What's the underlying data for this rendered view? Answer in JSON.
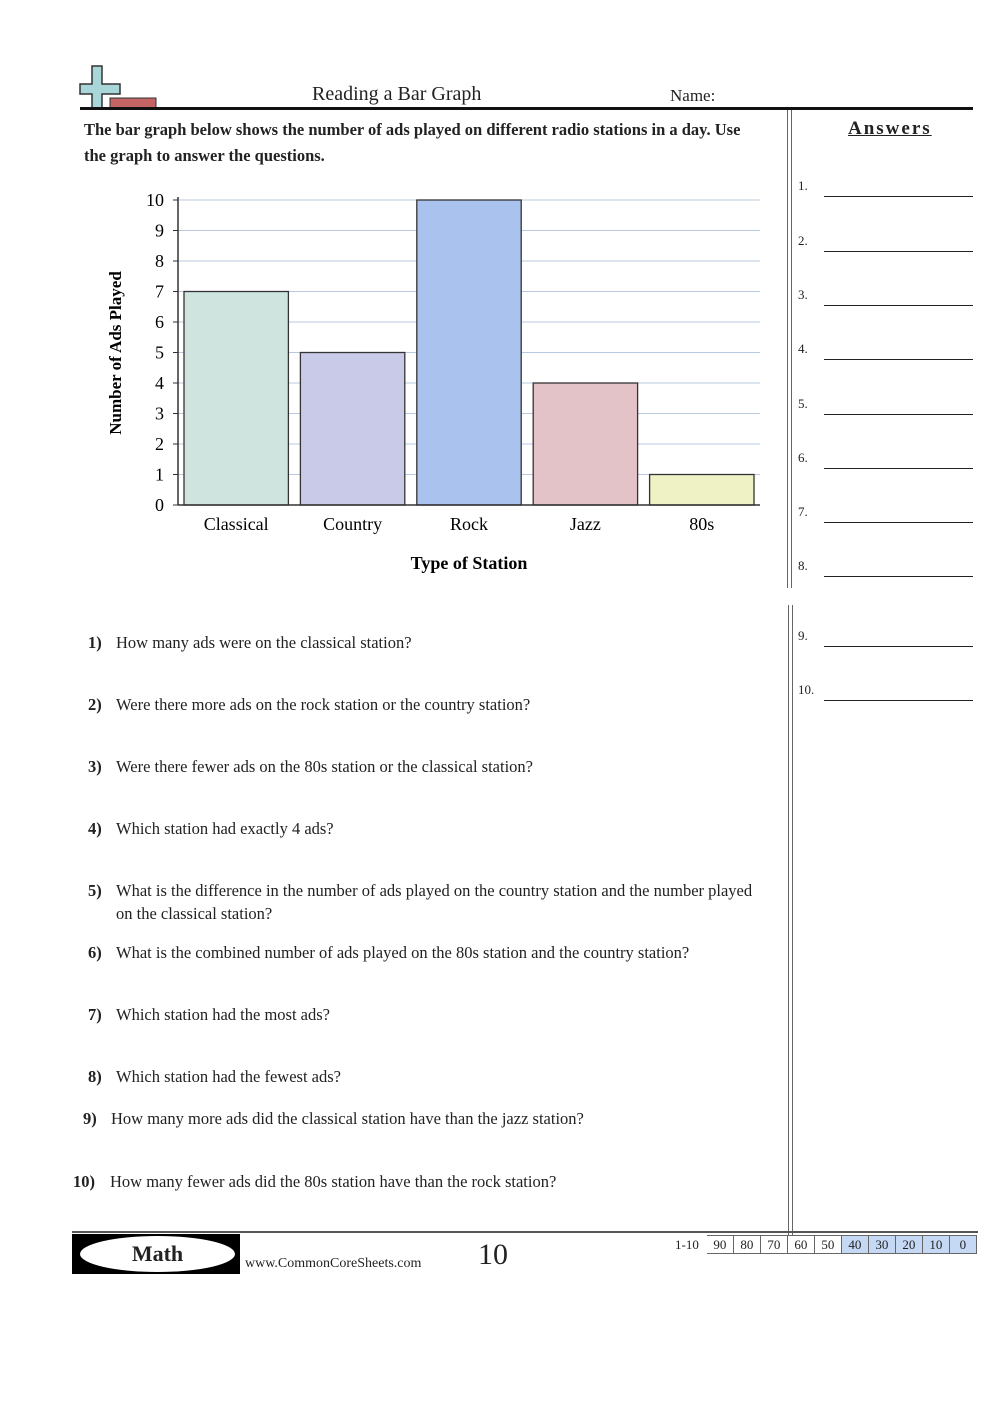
{
  "header": {
    "title": "Reading a Bar Graph",
    "name_label": "Name:"
  },
  "intro": "The bar graph below shows the number of ads played on different radio stations in a day. Use the graph to answer the questions.",
  "answers": {
    "heading": "Answers",
    "numbers": [
      "1.",
      "2.",
      "3.",
      "4.",
      "5.",
      "6.",
      "7.",
      "8.",
      "9.",
      "10."
    ]
  },
  "chart_data": {
    "type": "bar",
    "categories": [
      "Classical",
      "Country",
      "Rock",
      "Jazz",
      "80s"
    ],
    "values": [
      7,
      5,
      10,
      4,
      1
    ],
    "colors": [
      "#cfe4df",
      "#c9c9e8",
      "#a9c3ee",
      "#e3c3c7",
      "#eef2c4"
    ],
    "xlabel": "Type of Station",
    "ylabel": "Number of Ads Played",
    "ylim": [
      0,
      10
    ],
    "yticks": [
      "0",
      "1",
      "2",
      "3",
      "4",
      "5",
      "6",
      "7",
      "8",
      "9",
      "10"
    ],
    "grid": true
  },
  "questions": [
    {
      "num": "1)",
      "text": "How many ads were on the classical station?"
    },
    {
      "num": "2)",
      "text": "Were there more ads on the rock station or the country station?"
    },
    {
      "num": "3)",
      "text": "Were there fewer ads on the 80s station or the classical station?"
    },
    {
      "num": "4)",
      "text": "Which station had exactly 4 ads?"
    },
    {
      "num": "5)",
      "text": "What is the difference in the number of ads played on the country station and the number played on the classical station?"
    },
    {
      "num": "6)",
      "text": "What is the combined number of ads played on the 80s station and the country station?"
    },
    {
      "num": "7)",
      "text": "Which station had the most ads?"
    },
    {
      "num": "8)",
      "text": "Which station had the fewest ads?"
    },
    {
      "num": "9)",
      "text": "How many more ads did the classical station have than the jazz station?"
    },
    {
      "num": "10)",
      "text": "How many fewer ads did the 80s station have than the rock station?"
    }
  ],
  "footer": {
    "subject": "Math",
    "site": "www.CommonCoreSheets.com",
    "page_number": "10",
    "score_label": "1-10",
    "scores": [
      "90",
      "80",
      "70",
      "60",
      "50",
      "40",
      "30",
      "20",
      "10",
      "0"
    ],
    "highlight_color": "#c5d9f5"
  }
}
